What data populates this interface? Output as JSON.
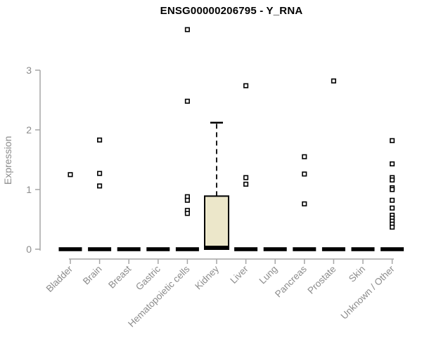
{
  "title": "ENSG00000206795 - Y_RNA",
  "chart_data": {
    "type": "boxplot",
    "title": "ENSG00000206795 - Y_RNA",
    "ylabel": "Expression",
    "xlabel": "",
    "yticks": [
      0,
      1,
      2,
      3
    ],
    "ylim": [
      0,
      3.75
    ],
    "grid": false,
    "legend": "none",
    "colors": {
      "box_fill": "#ece7ca",
      "box_border": "#000000",
      "axis": "#a6a6a6",
      "tick_label": "#8c8c8c",
      "title": "#000000",
      "outlier": "#000000"
    },
    "categories": [
      "Bladder",
      "Brain",
      "Breast",
      "Gastric",
      "Hematopoietic cells",
      "Kidney",
      "Liver",
      "Lung",
      "Pancreas",
      "Prostate",
      "Skin",
      "Unknown / Other"
    ],
    "series": [
      {
        "name": "Bladder",
        "q1": 0,
        "median": 0,
        "q3": 0.02,
        "whisker_low": 0,
        "whisker_high": 0.02,
        "outliers": [
          1.25
        ]
      },
      {
        "name": "Brain",
        "q1": 0,
        "median": 0,
        "q3": 0.02,
        "whisker_low": 0,
        "whisker_high": 0.02,
        "outliers": [
          1.83,
          1.27,
          1.06
        ]
      },
      {
        "name": "Breast",
        "q1": 0,
        "median": 0,
        "q3": 0.02,
        "whisker_low": 0,
        "whisker_high": 0.02,
        "outliers": []
      },
      {
        "name": "Gastric",
        "q1": 0,
        "median": 0,
        "q3": 0.02,
        "whisker_low": 0,
        "whisker_high": 0.02,
        "outliers": []
      },
      {
        "name": "Hematopoietic cells",
        "q1": 0,
        "median": 0,
        "q3": 0.02,
        "whisker_low": 0,
        "whisker_high": 0.02,
        "outliers": [
          3.68,
          2.48,
          0.88,
          0.82,
          0.65,
          0.6
        ]
      },
      {
        "name": "Kidney",
        "q1": 0,
        "median": 0.03,
        "q3": 0.89,
        "whisker_low": 0,
        "whisker_high": 2.12,
        "outliers": []
      },
      {
        "name": "Liver",
        "q1": 0,
        "median": 0,
        "q3": 0.02,
        "whisker_low": 0,
        "whisker_high": 0.02,
        "outliers": [
          2.74,
          1.2,
          1.09
        ]
      },
      {
        "name": "Lung",
        "q1": 0,
        "median": 0,
        "q3": 0.02,
        "whisker_low": 0,
        "whisker_high": 0.02,
        "outliers": []
      },
      {
        "name": "Pancreas",
        "q1": 0,
        "median": 0,
        "q3": 0.02,
        "whisker_low": 0,
        "whisker_high": 0.02,
        "outliers": [
          1.55,
          1.26,
          0.76
        ]
      },
      {
        "name": "Prostate",
        "q1": 0,
        "median": 0,
        "q3": 0.02,
        "whisker_low": 0,
        "whisker_high": 0.02,
        "outliers": [
          2.82
        ]
      },
      {
        "name": "Skin",
        "q1": 0,
        "median": 0,
        "q3": 0.02,
        "whisker_low": 0,
        "whisker_high": 0.02,
        "outliers": []
      },
      {
        "name": "Unknown / Other",
        "q1": 0,
        "median": 0,
        "q3": 0.02,
        "whisker_low": 0,
        "whisker_high": 0.02,
        "outliers": [
          1.82,
          1.43,
          1.2,
          1.16,
          1.03,
          1.0,
          0.82,
          0.69,
          0.57,
          0.52,
          0.47,
          0.42,
          0.37
        ]
      }
    ]
  }
}
